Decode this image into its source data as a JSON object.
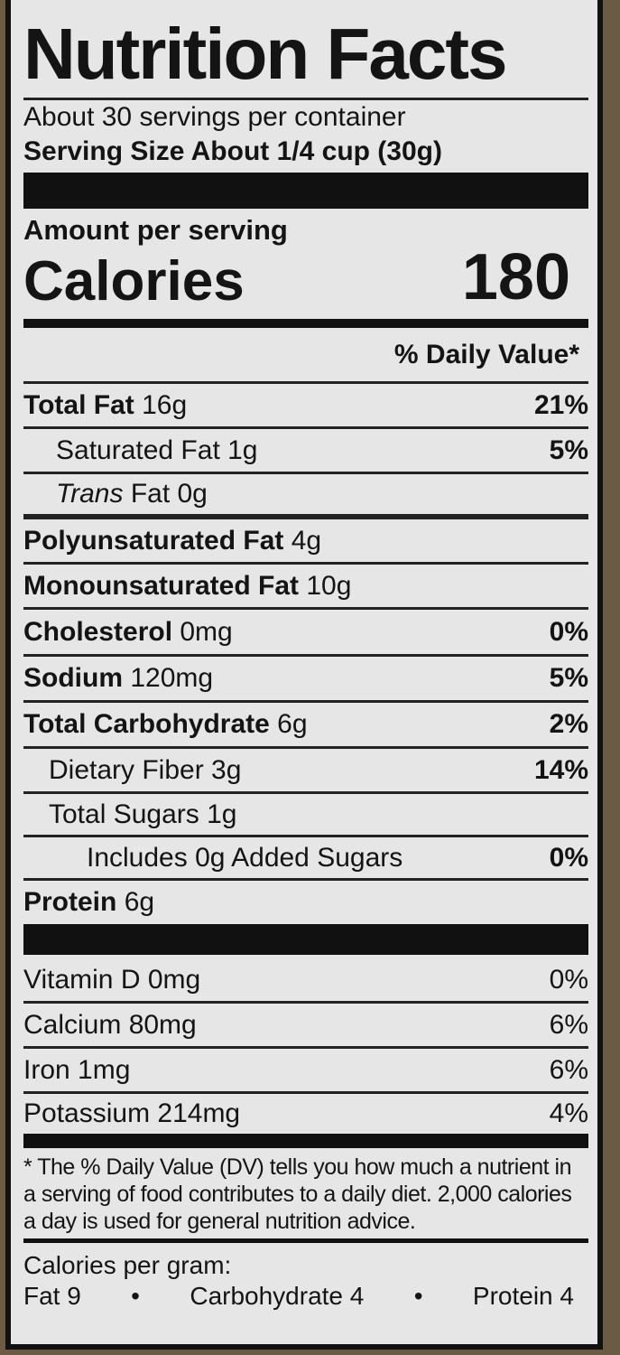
{
  "title": "Nutrition Facts",
  "servings_per_container": "About 30 servings per container",
  "serving_size": "Serving Size About 1/4 cup (30g)",
  "amount_per_serving": "Amount per serving",
  "calories_label": "Calories",
  "calories_value": "180",
  "dv_header": "% Daily Value*",
  "nutrients": [
    {
      "name": "Total Fat",
      "amount": "16g",
      "dv": "21%"
    },
    {
      "name": "Saturated Fat 1g",
      "amount": "",
      "dv": "5%"
    },
    {
      "name": "Trans",
      "amount": "Fat 0g",
      "dv": ""
    },
    {
      "name": "Polyunsaturated Fat",
      "amount": "4g",
      "dv": ""
    },
    {
      "name": "Monounsaturated Fat",
      "amount": "10g",
      "dv": ""
    },
    {
      "name": "Cholesterol",
      "amount": "0mg",
      "dv": "0%"
    },
    {
      "name": "Sodium",
      "amount": "120mg",
      "dv": "5%"
    },
    {
      "name": "Total Carbohydrate",
      "amount": "6g",
      "dv": "2%"
    },
    {
      "name": "Dietary Fiber 3g",
      "amount": "",
      "dv": "14%"
    },
    {
      "name": "Total Sugars 1g",
      "amount": "",
      "dv": ""
    },
    {
      "name": "Includes 0g Added Sugars",
      "amount": "",
      "dv": "0%"
    },
    {
      "name": "Protein",
      "amount": "6g",
      "dv": ""
    }
  ],
  "vitamins": [
    {
      "name": "Vitamin D 0mg",
      "dv": "0%"
    },
    {
      "name": "Calcium 80mg",
      "dv": "6%"
    },
    {
      "name": "Iron 1mg",
      "dv": "6%"
    },
    {
      "name": "Potassium 214mg",
      "dv": "4%"
    }
  ],
  "footnote": "* The % Daily Value (DV) tells you how much a nutrient in a serving of food contributes to a daily diet. 2,000 calories a day is used for general nutrition advice.",
  "calories_per_gram": {
    "label": "Calories per gram:",
    "fat": "Fat 9",
    "bullet": "•",
    "carb": "Carbohydrate 4",
    "protein": "Protein 4"
  }
}
